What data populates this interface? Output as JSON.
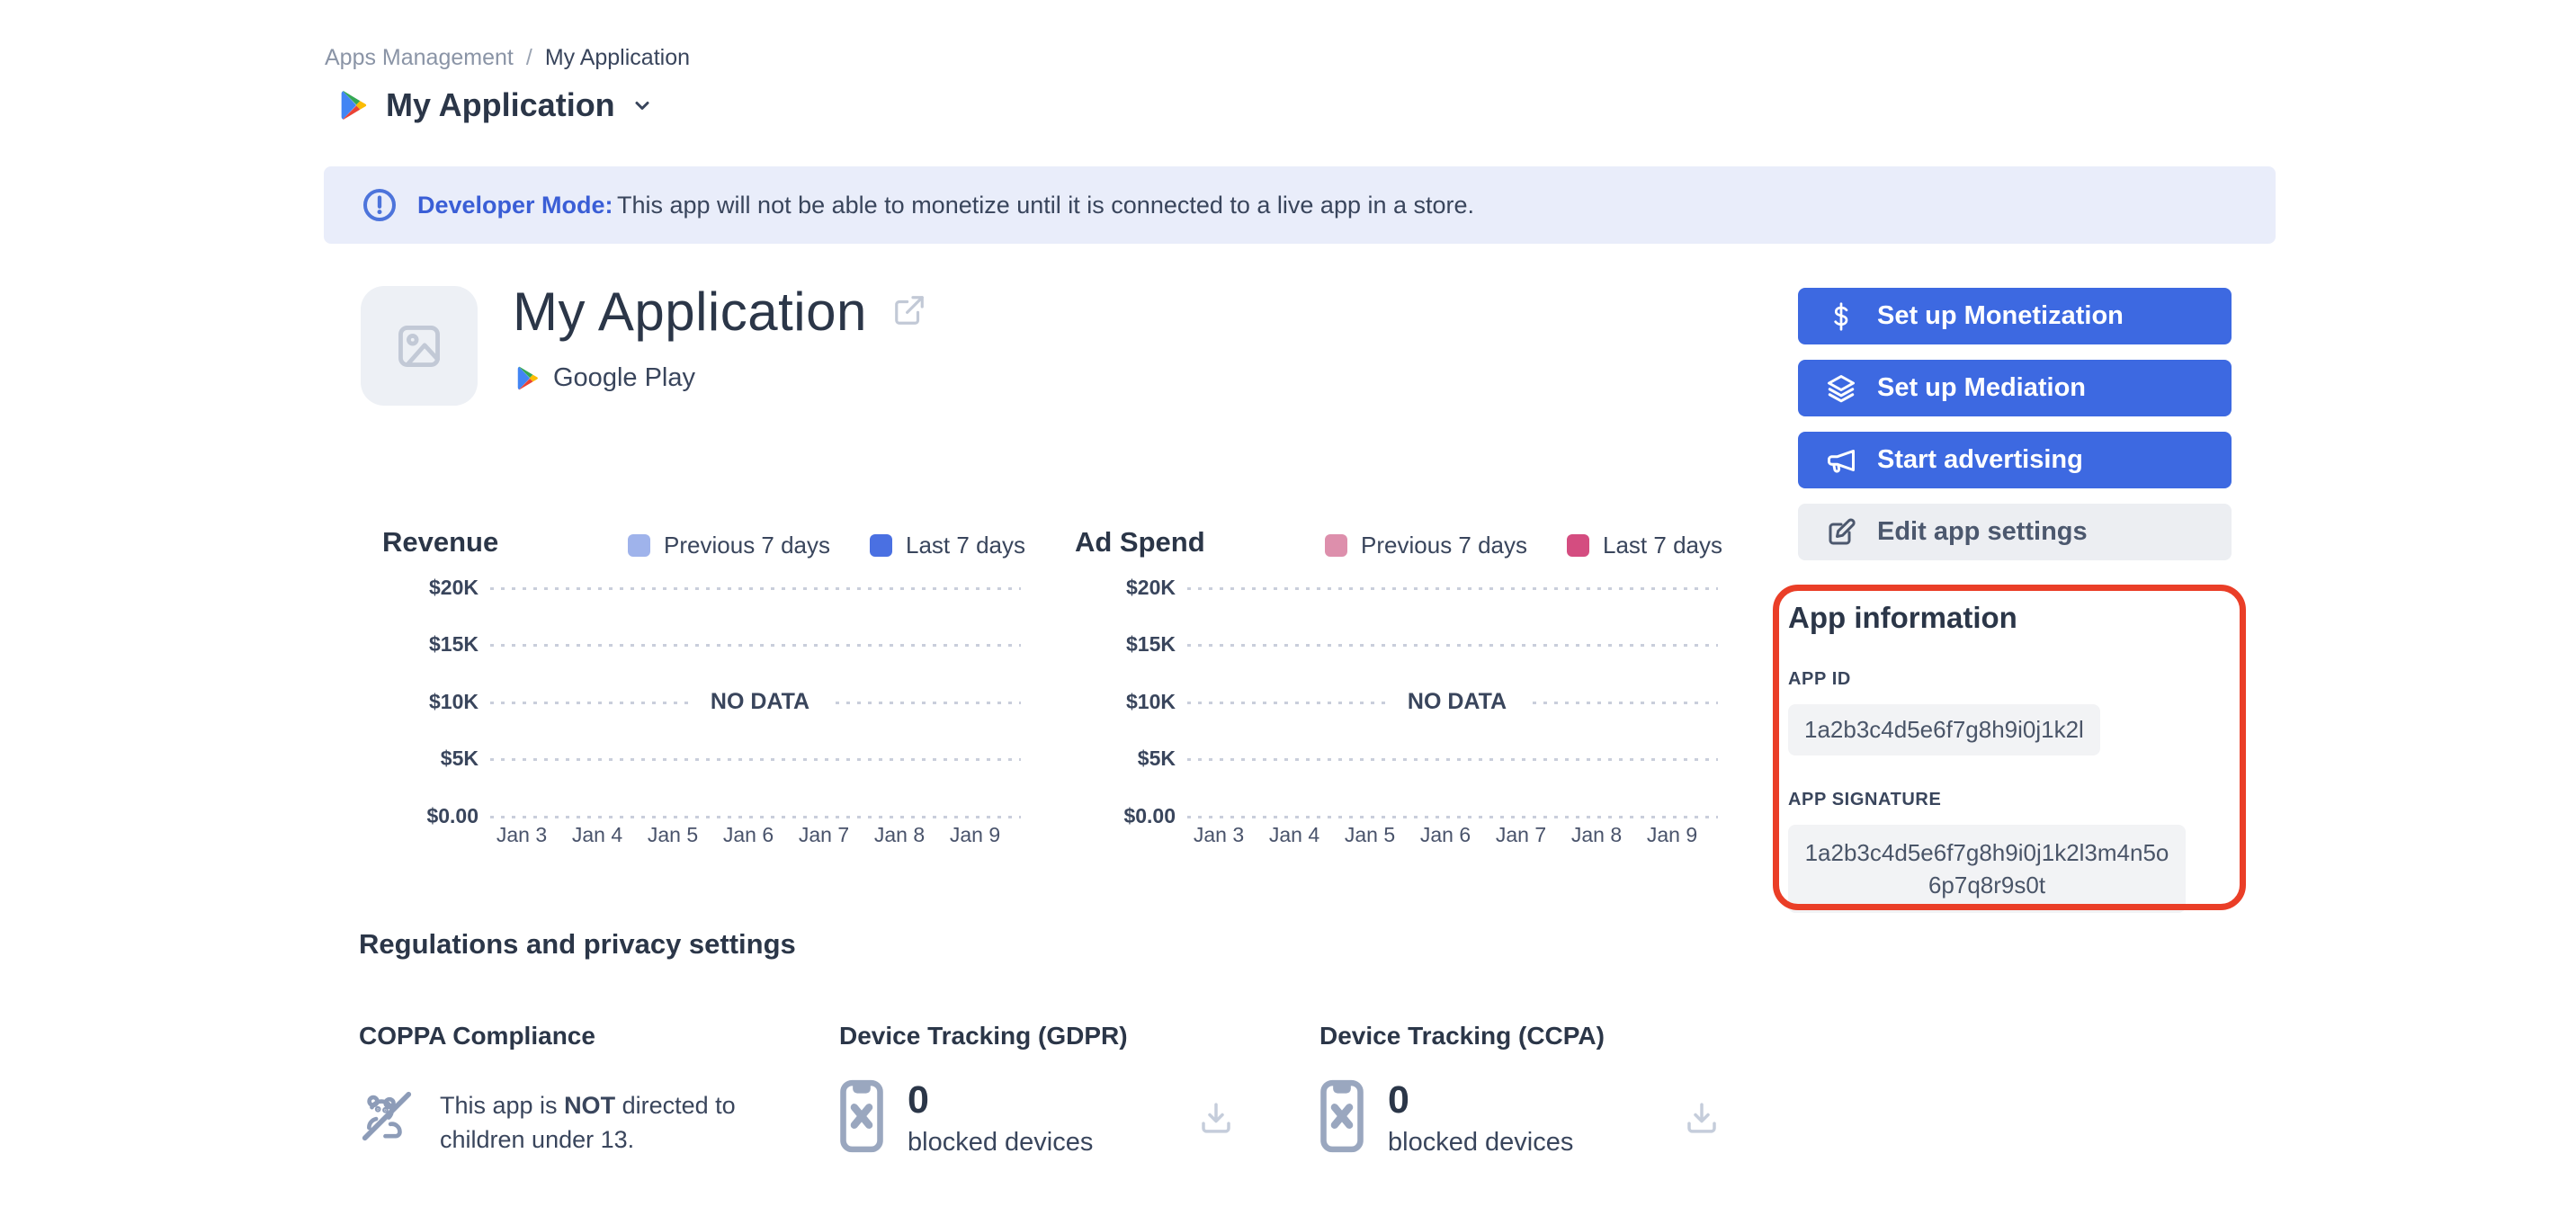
{
  "breadcrumb": {
    "items": [
      "Apps Management",
      "My Application"
    ],
    "separator": "/"
  },
  "header": {
    "title": "My Application"
  },
  "banner": {
    "label": "Developer Mode:",
    "message": "This app will not be able to monetize until it is connected to a live app in a store."
  },
  "hero": {
    "app_name": "My Application",
    "store": "Google Play"
  },
  "actions": {
    "monetization": "Set up Monetization",
    "mediation": "Set up Mediation",
    "advertising": "Start advertising",
    "edit": "Edit app settings"
  },
  "chart_data": [
    {
      "type": "line",
      "title": "Revenue",
      "legend": [
        {
          "name": "Previous 7 days",
          "color": "#9FB3EB"
        },
        {
          "name": "Last 7 days",
          "color": "#4A70E2"
        }
      ],
      "x": [
        "Jan 3",
        "Jan 4",
        "Jan 5",
        "Jan 6",
        "Jan 7",
        "Jan 8",
        "Jan 9"
      ],
      "y_ticks": [
        "$20K",
        "$15K",
        "$10K",
        "$5K",
        "$0.00"
      ],
      "ylim": [
        0,
        20000
      ],
      "series": [
        {
          "name": "Previous 7 days",
          "values": []
        },
        {
          "name": "Last 7 days",
          "values": []
        }
      ],
      "no_data_label": "NO DATA",
      "grid": "horizontal-dotted",
      "legend_position": "top-right"
    },
    {
      "type": "line",
      "title": "Ad Spend",
      "legend": [
        {
          "name": "Previous 7 days",
          "color": "#DD8FAC"
        },
        {
          "name": "Last 7 days",
          "color": "#D44D80"
        }
      ],
      "x": [
        "Jan 3",
        "Jan 4",
        "Jan 5",
        "Jan 6",
        "Jan 7",
        "Jan 8",
        "Jan 9"
      ],
      "y_ticks": [
        "$20K",
        "$15K",
        "$10K",
        "$5K",
        "$0.00"
      ],
      "ylim": [
        0,
        20000
      ],
      "series": [
        {
          "name": "Previous 7 days",
          "values": []
        },
        {
          "name": "Last 7 days",
          "values": []
        }
      ],
      "no_data_label": "NO DATA",
      "grid": "horizontal-dotted",
      "legend_position": "top-right"
    }
  ],
  "app_info": {
    "title": "App information",
    "app_id_label": "APP ID",
    "app_id": "1a2b3c4d5e6f7g8h9i0j1k2l",
    "app_signature_label": "APP SIGNATURE",
    "app_signature": "1a2b3c4d5e6f7g8h9i0j1k2l3m4n5o6p7q8r9s0t"
  },
  "regulations": {
    "title": "Regulations and privacy settings",
    "coppa": {
      "title": "COPPA Compliance",
      "text_prefix": "This app is ",
      "text_bold": "NOT",
      "text_suffix": " directed to children under 13."
    },
    "gdpr": {
      "title": "Device Tracking (GDPR)",
      "count": "0",
      "label": "blocked devices"
    },
    "ccpa": {
      "title": "Device Tracking (CCPA)",
      "count": "0",
      "label": "blocked devices"
    }
  },
  "colors": {
    "primary_button": "#3D69E1",
    "banner_background": "#E9EDFA",
    "banner_accent": "#3A5ED6",
    "annotation_red": "#EA3E27"
  }
}
